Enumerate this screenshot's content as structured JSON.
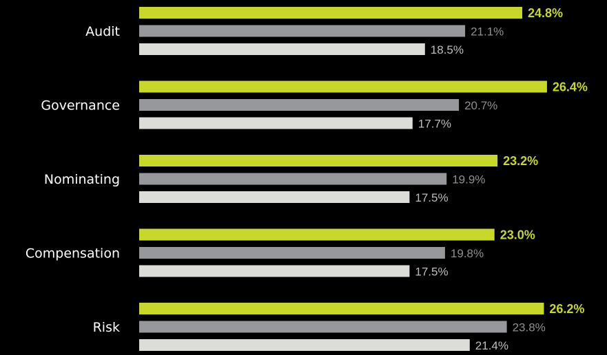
{
  "chart_data": {
    "type": "bar",
    "orientation": "horizontal",
    "categories": [
      "Audit",
      "Governance",
      "Nominating",
      "Compensation",
      "Risk"
    ],
    "series": [
      {
        "values": [
          24.8,
          26.4,
          23.2,
          23.0,
          26.2
        ],
        "labels": [
          "24.8%",
          "26.4%",
          "23.2%",
          "23.0%",
          "26.2%"
        ],
        "color": "#c8d82a",
        "label_color": "#c8d82a",
        "bold": true
      },
      {
        "values": [
          21.1,
          20.7,
          19.9,
          19.8,
          23.8
        ],
        "labels": [
          "21.1%",
          "20.7%",
          "19.9%",
          "19.8%",
          "23.8%"
        ],
        "color": "#97989b",
        "label_color": "#8e8f92",
        "bold": false
      },
      {
        "values": [
          18.5,
          17.7,
          17.5,
          17.5,
          21.4
        ],
        "labels": [
          "18.5%",
          "17.7%",
          "17.5%",
          "17.5%",
          "21.4%"
        ],
        "color": "#dcdcd8",
        "label_color": "#bdbdbd",
        "bold": false
      }
    ],
    "value_unit": "%",
    "xlim": [
      0,
      30
    ],
    "grid": false,
    "legend": false,
    "background": "#000000"
  }
}
